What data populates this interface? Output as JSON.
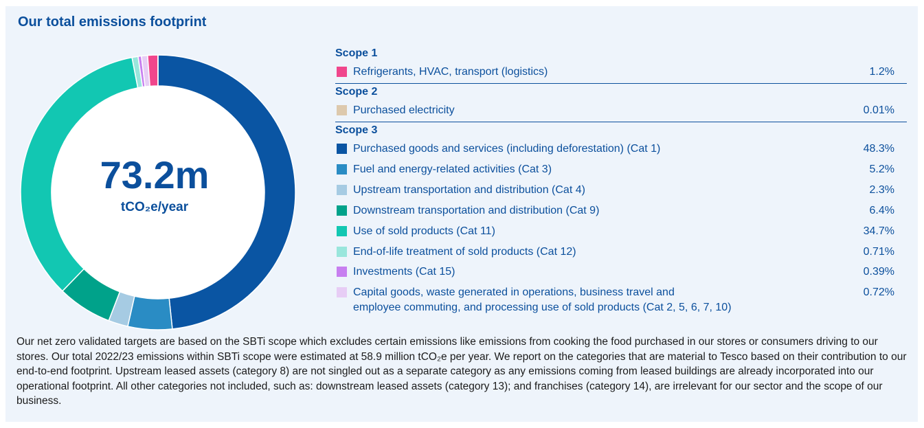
{
  "title": "Our total emissions footprint",
  "center": {
    "value": "73.2m",
    "unit": "tCO₂e/year"
  },
  "legend": {
    "scope1": {
      "heading": "Scope 1",
      "items": [
        {
          "label": "Refrigerants, HVAC, transport (logistics)",
          "pct": "1.2%",
          "color": "#f0468c"
        }
      ]
    },
    "scope2": {
      "heading": "Scope 2",
      "items": [
        {
          "label": "Purchased electricity",
          "pct": "0.01%",
          "color": "#ddc9ad"
        }
      ]
    },
    "scope3": {
      "heading": "Scope 3",
      "items": [
        {
          "label": "Purchased goods and services (including deforestation) (Cat 1)",
          "pct": "48.3%",
          "color": "#0a55a3"
        },
        {
          "label": "Fuel and energy-related activities (Cat 3)",
          "pct": "5.2%",
          "color": "#2a8cc4"
        },
        {
          "label": "Upstream transportation and distribution (Cat 4)",
          "pct": "2.3%",
          "color": "#a6cbe3"
        },
        {
          "label": "Downstream transportation and distribution (Cat 9)",
          "pct": "6.4%",
          "color": "#00a28a"
        },
        {
          "label": "Use of sold products (Cat 11)",
          "pct": "34.7%",
          "color": "#12c7b2"
        },
        {
          "label": "End-of-life treatment of sold products (Cat 12)",
          "pct": "0.71%",
          "color": "#99e6dc"
        },
        {
          "label": "Investments (Cat 15)",
          "pct": "0.39%",
          "color": "#c77ff0"
        },
        {
          "label": "Capital goods, waste generated in operations, business travel and",
          "label2": "employee commuting, and processing use of sold products (Cat 2, 5, 6, 7, 10)",
          "pct": "0.72%",
          "color": "#e7cdf5"
        }
      ]
    }
  },
  "chart_data": {
    "type": "pie",
    "title": "Our total emissions footprint",
    "center_label": "73.2m tCO₂e/year",
    "unit": "percent",
    "categories": [
      "Refrigerants, HVAC, transport (logistics)",
      "Purchased electricity",
      "Purchased goods and services (including deforestation) (Cat 1)",
      "Fuel and energy-related activities (Cat 3)",
      "Upstream transportation and distribution (Cat 4)",
      "Downstream transportation and distribution (Cat 9)",
      "Use of sold products (Cat 11)",
      "End-of-life treatment of sold products (Cat 12)",
      "Investments (Cat 15)",
      "Capital goods, waste generated in operations, business travel and employee commuting, and processing use of sold products (Cat 2, 5, 6, 7, 10)"
    ],
    "values": [
      1.2,
      0.01,
      48.3,
      5.2,
      2.3,
      6.4,
      34.7,
      0.71,
      0.39,
      0.72
    ],
    "colors": [
      "#f0468c",
      "#ddc9ad",
      "#0a55a3",
      "#2a8cc4",
      "#a6cbe3",
      "#00a28a",
      "#12c7b2",
      "#99e6dc",
      "#c77ff0",
      "#e7cdf5"
    ]
  },
  "footnote": "Our net zero validated targets are based on the SBTi scope which excludes certain emissions like emissions from cooking the food purchased in our stores or consumers driving to our stores. Our total 2022/23 emissions within SBTi scope were estimated at 58.9 million tCO₂e per year. We report on the categories that are material to Tesco based on their contribution to our end-to-end footprint. Upstream leased assets (category 8) are not singled out as a separate category as any emissions coming from leased buildings are already incorporated into our operational footprint. All other categories not included, such as: downstream leased assets (category 13); and franchises (category 14), are irrelevant for our sector and the scope of our business."
}
